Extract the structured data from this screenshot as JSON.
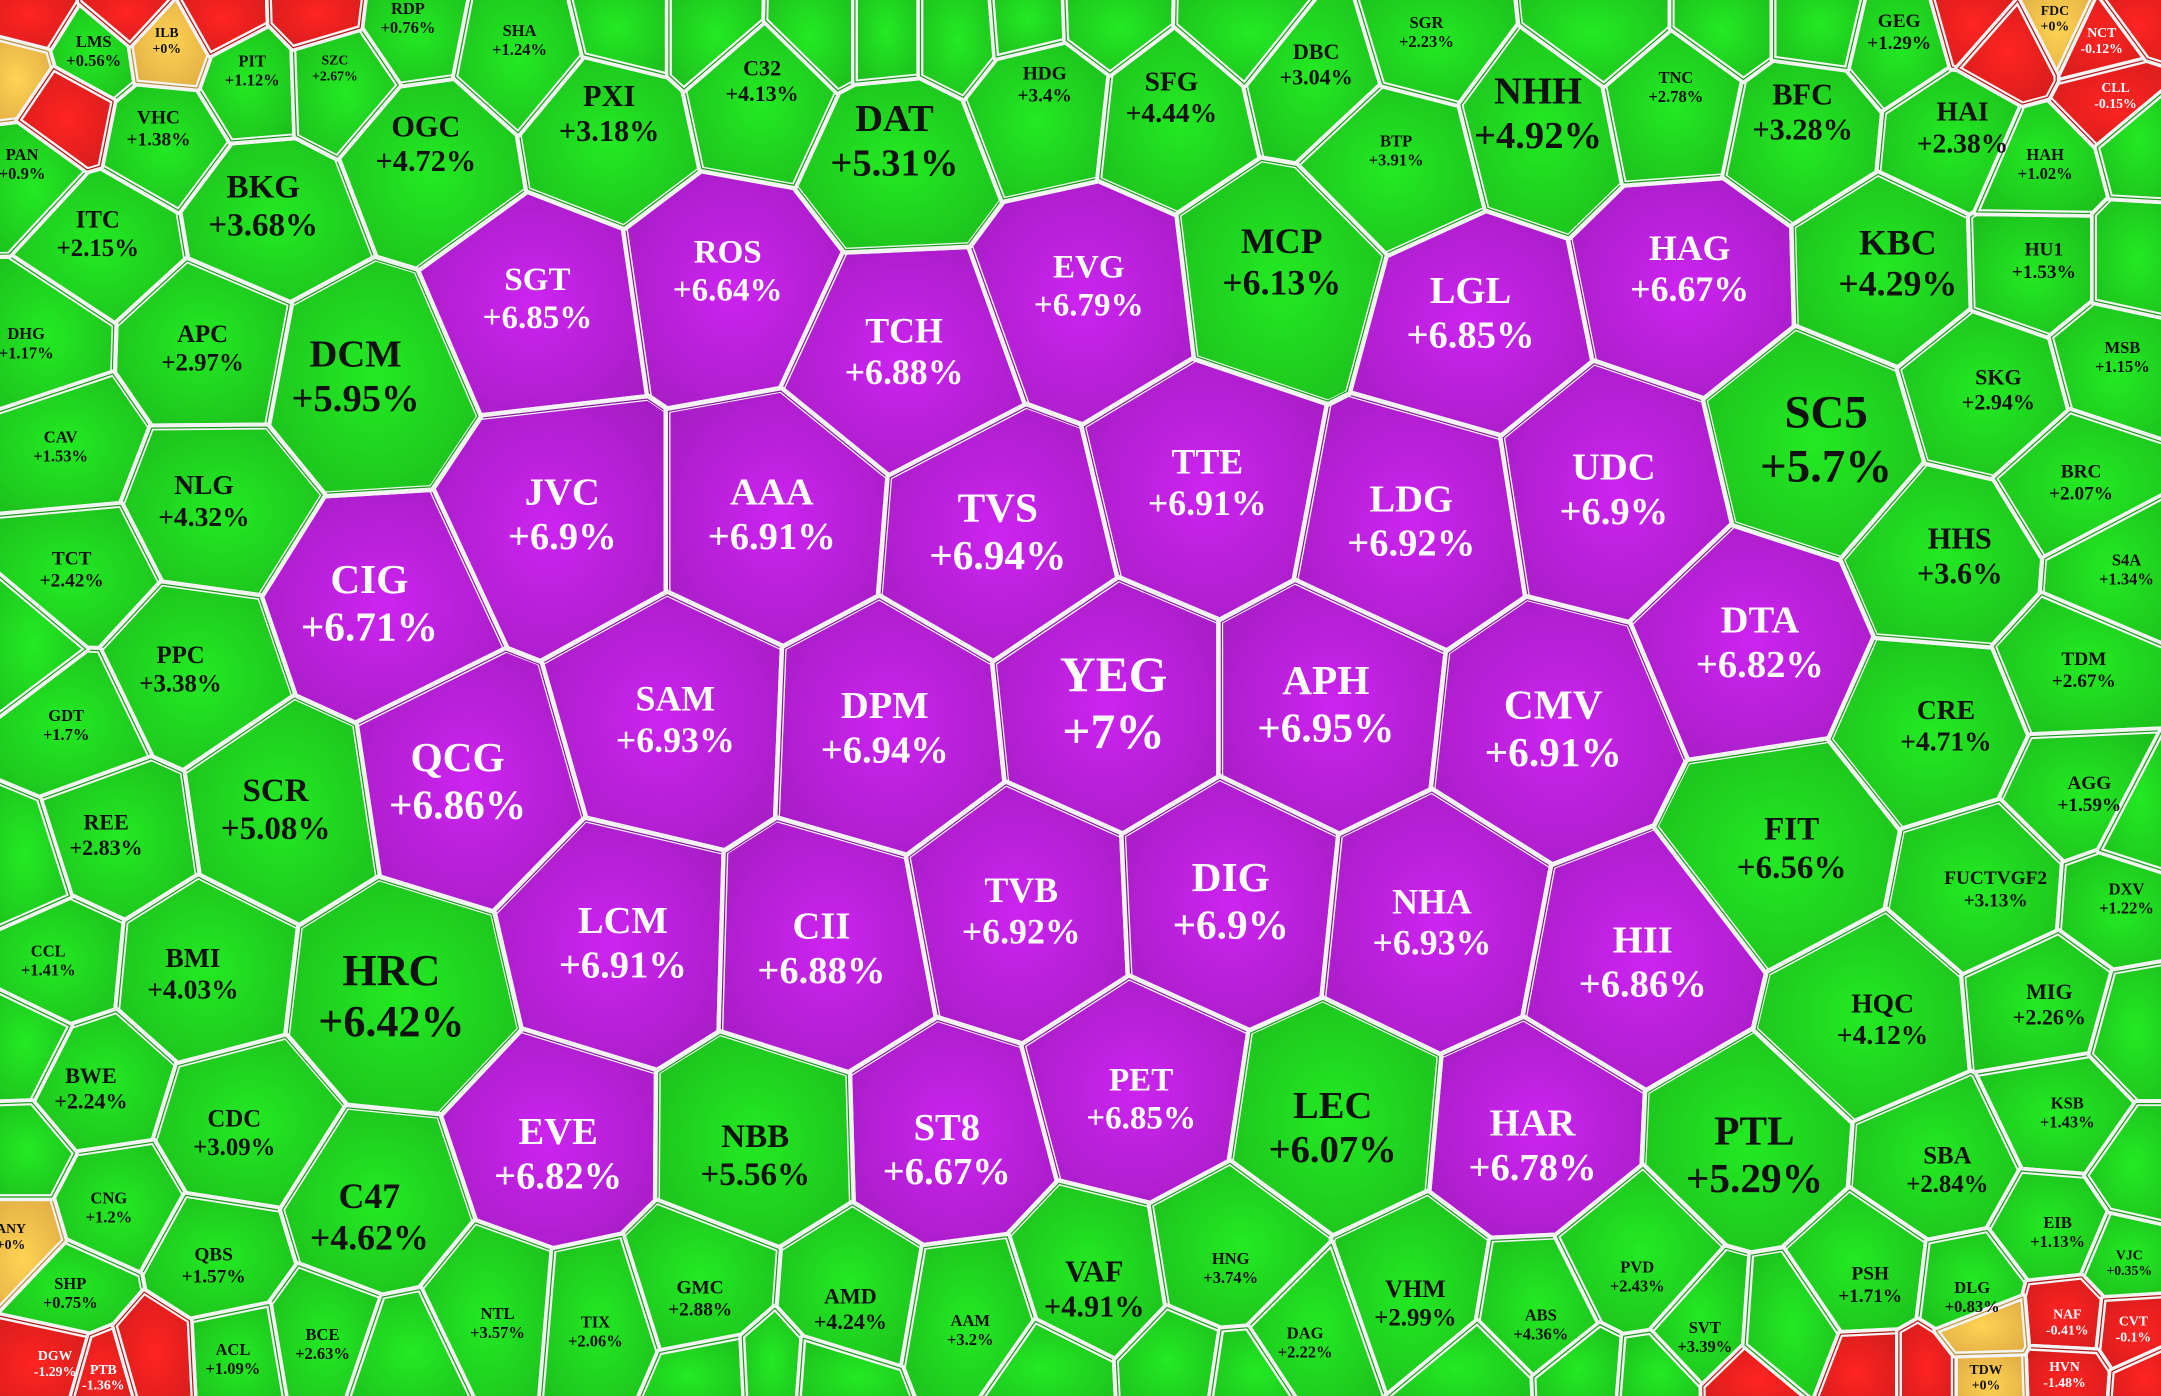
{
  "cells": [
    {
      "ticker": "SGT",
      "change": "+6.85%",
      "color": "#b620d6"
    },
    {
      "ticker": "ROS",
      "change": "+6.64%",
      "color": "#b620d6"
    },
    {
      "ticker": "TCH",
      "change": "+6.88%",
      "color": "#b620d6"
    },
    {
      "ticker": "EVG",
      "change": "+6.79%",
      "color": "#b620d6"
    },
    {
      "ticker": "LGL",
      "change": "+6.85%",
      "color": "#b620d6"
    },
    {
      "ticker": "HAG",
      "change": "+6.67%",
      "color": "#b620d6"
    },
    {
      "ticker": "JVC",
      "change": "+6.9%",
      "color": "#b620d6"
    },
    {
      "ticker": "AAA",
      "change": "+6.91%",
      "color": "#b620d6"
    },
    {
      "ticker": "TVS",
      "change": "+6.94%",
      "color": "#b620d6"
    },
    {
      "ticker": "TTE",
      "change": "+6.91%",
      "color": "#b620d6"
    },
    {
      "ticker": "LDG",
      "change": "+6.92%",
      "color": "#b620d6"
    },
    {
      "ticker": "UDC",
      "change": "+6.9%",
      "color": "#b620d6"
    },
    {
      "ticker": "CIG",
      "change": "+6.71%",
      "color": "#b620d6"
    },
    {
      "ticker": "DTA",
      "change": "+6.82%",
      "color": "#b620d6"
    },
    {
      "ticker": "SAM",
      "change": "+6.93%",
      "color": "#b620d6"
    },
    {
      "ticker": "DPM",
      "change": "+6.94%",
      "color": "#b620d6"
    },
    {
      "ticker": "YEG",
      "change": "+7%",
      "color": "#b620d6"
    },
    {
      "ticker": "APH",
      "change": "+6.95%",
      "color": "#b620d6"
    },
    {
      "ticker": "CMV",
      "change": "+6.91%",
      "color": "#b620d6"
    },
    {
      "ticker": "QCG",
      "change": "+6.86%",
      "color": "#b620d6"
    },
    {
      "ticker": "LCM",
      "change": "+6.91%",
      "color": "#b620d6"
    },
    {
      "ticker": "CII",
      "change": "+6.88%",
      "color": "#b620d6"
    },
    {
      "ticker": "TVB",
      "change": "+6.92%",
      "color": "#b620d6"
    },
    {
      "ticker": "DIG",
      "change": "+6.9%",
      "color": "#b620d6"
    },
    {
      "ticker": "NHA",
      "change": "+6.93%",
      "color": "#b620d6"
    },
    {
      "ticker": "HII",
      "change": "+6.86%",
      "color": "#b620d6"
    },
    {
      "ticker": "EVE",
      "change": "+6.82%",
      "color": "#b620d6"
    },
    {
      "ticker": "ST8",
      "change": "+6.67%",
      "color": "#b620d6"
    },
    {
      "ticker": "PET",
      "change": "+6.85%",
      "color": "#b620d6"
    },
    {
      "ticker": "HAR",
      "change": "+6.78%",
      "color": "#b620d6"
    },
    {
      "ticker": "DAT",
      "change": "+5.31%",
      "color": "#1fd11f"
    },
    {
      "ticker": "OGC",
      "change": "+4.72%",
      "color": "#1fd11f"
    },
    {
      "ticker": "BKG",
      "change": "+3.68%",
      "color": "#1fd11f"
    },
    {
      "ticker": "PXI",
      "change": "+3.18%",
      "color": "#1fd11f"
    },
    {
      "ticker": "C32",
      "change": "+4.13%",
      "color": "#1fd11f"
    },
    {
      "ticker": "HDG",
      "change": "+3.4%",
      "color": "#1fd11f"
    },
    {
      "ticker": "SFG",
      "change": "+4.44%",
      "color": "#1fd11f"
    },
    {
      "ticker": "DBC",
      "change": "+3.04%",
      "color": "#1fd11f"
    },
    {
      "ticker": "BTP",
      "change": "+3.91%",
      "color": "#1fd11f"
    },
    {
      "ticker": "SGR",
      "change": "+2.23%",
      "color": "#1fd11f"
    },
    {
      "ticker": "NHH",
      "change": "+4.92%",
      "color": "#1fd11f"
    },
    {
      "ticker": "TNC",
      "change": "+2.78%",
      "color": "#1fd11f"
    },
    {
      "ticker": "BFC",
      "change": "+3.28%",
      "color": "#1fd11f"
    },
    {
      "ticker": "GEG",
      "change": "+1.29%",
      "color": "#1fd11f"
    },
    {
      "ticker": "HAI",
      "change": "+2.38%",
      "color": "#1fd11f"
    },
    {
      "ticker": "MCP",
      "change": "+6.13%",
      "color": "#1fd11f"
    },
    {
      "ticker": "KBC",
      "change": "+4.29%",
      "color": "#1fd11f"
    },
    {
      "ticker": "SC5",
      "change": "+5.7%",
      "color": "#1fd11f"
    },
    {
      "ticker": "DCM",
      "change": "+5.95%",
      "color": "#1fd11f"
    },
    {
      "ticker": "ITC",
      "change": "+2.15%",
      "color": "#1fd11f"
    },
    {
      "ticker": "APC",
      "change": "+2.97%",
      "color": "#1fd11f"
    },
    {
      "ticker": "DHG",
      "change": "+1.17%",
      "color": "#1fd11f"
    },
    {
      "ticker": "CAV",
      "change": "+1.53%",
      "color": "#1fd11f"
    },
    {
      "ticker": "NLG",
      "change": "+4.32%",
      "color": "#1fd11f"
    },
    {
      "ticker": "TCT",
      "change": "+2.42%",
      "color": "#1fd11f"
    },
    {
      "ticker": "PPC",
      "change": "+3.38%",
      "color": "#1fd11f"
    },
    {
      "ticker": "GDT",
      "change": "+1.7%",
      "color": "#1fd11f"
    },
    {
      "ticker": "SCR",
      "change": "+5.08%",
      "color": "#1fd11f"
    },
    {
      "ticker": "REE",
      "change": "+2.83%",
      "color": "#1fd11f"
    },
    {
      "ticker": "CCL",
      "change": "+1.41%",
      "color": "#1fd11f"
    },
    {
      "ticker": "BMI",
      "change": "+4.03%",
      "color": "#1fd11f"
    },
    {
      "ticker": "HRC",
      "change": "+6.42%",
      "color": "#1fd11f"
    },
    {
      "ticker": "BWE",
      "change": "+2.24%",
      "color": "#1fd11f"
    },
    {
      "ticker": "CDC",
      "change": "+3.09%",
      "color": "#1fd11f"
    },
    {
      "ticker": "CNG",
      "change": "+1.2%",
      "color": "#1fd11f"
    },
    {
      "ticker": "QBS",
      "change": "+1.57%",
      "color": "#1fd11f"
    },
    {
      "ticker": "C47",
      "change": "+4.62%",
      "color": "#1fd11f"
    },
    {
      "ticker": "NBB",
      "change": "+5.56%",
      "color": "#1fd11f"
    },
    {
      "ticker": "LEC",
      "change": "+6.07%",
      "color": "#1fd11f"
    },
    {
      "ticker": "PTL",
      "change": "+5.29%",
      "color": "#1fd11f"
    },
    {
      "ticker": "FIT",
      "change": "+6.56%",
      "color": "#1fd11f"
    },
    {
      "ticker": "CRE",
      "change": "+4.71%",
      "color": "#1fd11f"
    },
    {
      "ticker": "HHS",
      "change": "+3.6%",
      "color": "#1fd11f"
    },
    {
      "ticker": "SKG",
      "change": "+2.94%",
      "color": "#1fd11f"
    },
    {
      "ticker": "HU1",
      "change": "+1.53%",
      "color": "#1fd11f"
    },
    {
      "ticker": "HAH",
      "change": "+1.02%",
      "color": "#1fd11f"
    },
    {
      "ticker": "MSB",
      "change": "+1.15%",
      "color": "#1fd11f"
    },
    {
      "ticker": "BRC",
      "change": "+2.07%",
      "color": "#1fd11f"
    },
    {
      "ticker": "S4A",
      "change": "+1.34%",
      "color": "#1fd11f"
    },
    {
      "ticker": "TDM",
      "change": "+2.67%",
      "color": "#1fd11f"
    },
    {
      "ticker": "AGG",
      "change": "+1.59%",
      "color": "#1fd11f"
    },
    {
      "ticker": "FUCTVGF2",
      "change": "+3.13%",
      "color": "#1fd11f"
    },
    {
      "ticker": "DXV",
      "change": "+1.22%",
      "color": "#1fd11f"
    },
    {
      "ticker": "HQC",
      "change": "+4.12%",
      "color": "#1fd11f"
    },
    {
      "ticker": "MIG",
      "change": "+2.26%",
      "color": "#1fd11f"
    },
    {
      "ticker": "KSB",
      "change": "+1.43%",
      "color": "#1fd11f"
    },
    {
      "ticker": "SBA",
      "change": "+2.84%",
      "color": "#1fd11f"
    },
    {
      "ticker": "EIB",
      "change": "+1.13%",
      "color": "#1fd11f"
    },
    {
      "ticker": "PSH",
      "change": "+1.71%",
      "color": "#1fd11f"
    },
    {
      "ticker": "DLG",
      "change": "+0.83%",
      "color": "#1fd11f"
    },
    {
      "ticker": "VJC",
      "change": "+0.35%",
      "color": "#1fd11f"
    },
    {
      "ticker": "VAF",
      "change": "+4.91%",
      "color": "#1fd11f"
    },
    {
      "ticker": "HNG",
      "change": "+3.74%",
      "color": "#1fd11f"
    },
    {
      "ticker": "VHM",
      "change": "+2.99%",
      "color": "#1fd11f"
    },
    {
      "ticker": "ABS",
      "change": "+4.36%",
      "color": "#1fd11f"
    },
    {
      "ticker": "PVD",
      "change": "+2.43%",
      "color": "#1fd11f"
    },
    {
      "ticker": "SVT",
      "change": "+3.39%",
      "color": "#1fd11f"
    },
    {
      "ticker": "AMD",
      "change": "+4.24%",
      "color": "#1fd11f"
    },
    {
      "ticker": "AAM",
      "change": "+3.2%",
      "color": "#1fd11f"
    },
    {
      "ticker": "GMC",
      "change": "+2.88%",
      "color": "#1fd11f"
    },
    {
      "ticker": "NTL",
      "change": "+3.57%",
      "color": "#1fd11f"
    },
    {
      "ticker": "TIX",
      "change": "+2.06%",
      "color": "#1fd11f"
    },
    {
      "ticker": "BCE",
      "change": "+2.63%",
      "color": "#1fd11f"
    },
    {
      "ticker": "ACL",
      "change": "+1.09%",
      "color": "#1fd11f"
    },
    {
      "ticker": "SHP",
      "change": "+0.75%",
      "color": "#1fd11f"
    },
    {
      "ticker": "DAG",
      "change": "+2.22%",
      "color": "#1fd11f"
    },
    {
      "ticker": "VHC",
      "change": "+1.38%",
      "color": "#1fd11f"
    },
    {
      "ticker": "LMS",
      "change": "+0.56%",
      "color": "#1fd11f"
    },
    {
      "ticker": "PIT",
      "change": "+1.12%",
      "color": "#1fd11f"
    },
    {
      "ticker": "PAN",
      "change": "+0.9%",
      "color": "#1fd11f"
    },
    {
      "ticker": "RDP",
      "change": "+0.76%",
      "color": "#1fd11f"
    },
    {
      "ticker": "SHA",
      "change": "+1.24%",
      "color": "#1fd11f"
    },
    {
      "ticker": "SZC",
      "change": "+2.67%",
      "color": "#1fd11f"
    },
    {
      "ticker": "NCT",
      "change": "-0.12%",
      "color": "#e8201e"
    },
    {
      "ticker": "CLL",
      "change": "-0.15%",
      "color": "#e8201e"
    },
    {
      "ticker": "NAF",
      "change": "-0.41%",
      "color": "#e8201e"
    },
    {
      "ticker": "CVT",
      "change": "-0.1%",
      "color": "#e8201e"
    },
    {
      "ticker": "HVN",
      "change": "-1.48%",
      "color": "#e8201e"
    },
    {
      "ticker": "DGW",
      "change": "-1.29%",
      "color": "#e8201e"
    },
    {
      "ticker": "PTB",
      "change": "-1.36%",
      "color": "#e8201e"
    },
    {
      "ticker": "FDC",
      "change": "+0%",
      "color": "#f5bc4a"
    },
    {
      "ticker": "ANY",
      "change": "+0%",
      "color": "#f5bc4a"
    },
    {
      "ticker": "ILB",
      "change": "+0%",
      "color": "#f5bc4a"
    },
    {
      "ticker": "TDW",
      "change": "+0%",
      "color": "#f5bc4a"
    }
  ]
}
